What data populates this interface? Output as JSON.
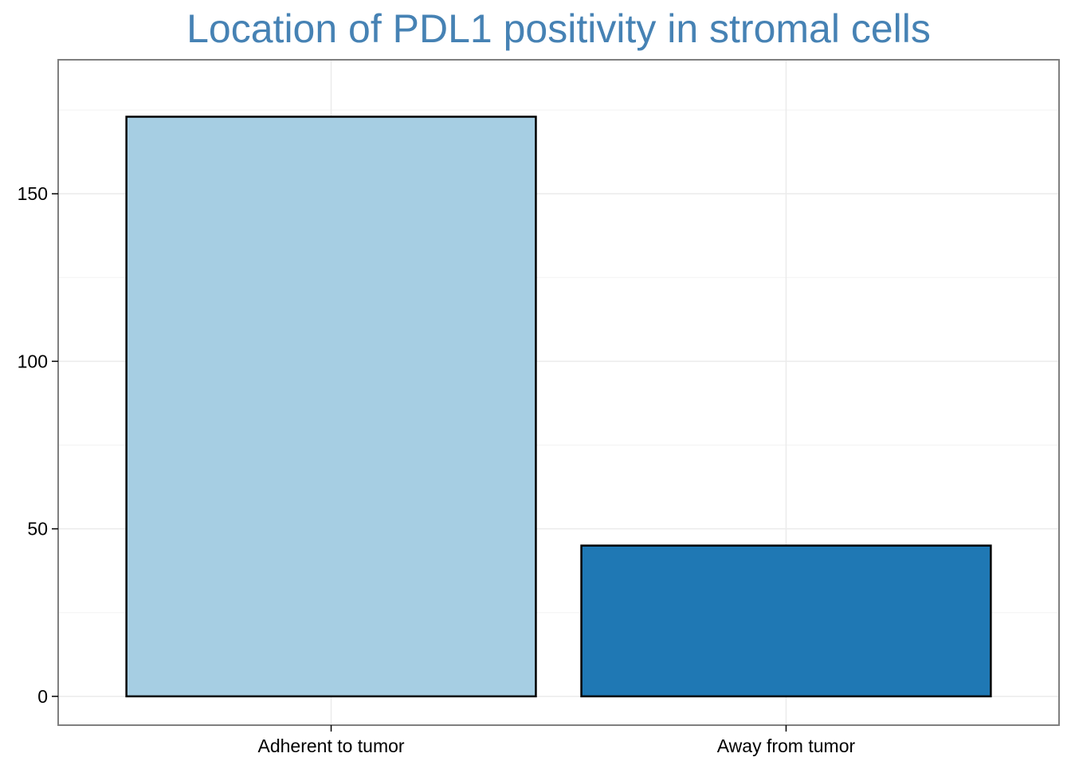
{
  "chart_data": {
    "type": "bar",
    "title": "Location of PDL1 positivity in stromal cells",
    "xlabel": "",
    "ylabel": "",
    "categories": [
      "Adherent to tumor",
      "Away from tumor"
    ],
    "values": [
      173,
      45
    ],
    "ylim": [
      -8.6,
      190
    ],
    "yticks": [
      0,
      50,
      100,
      150
    ],
    "ytick_labels": [
      "0",
      "50",
      "100",
      "150"
    ],
    "grid": true,
    "legend": "none",
    "colors": {
      "title": "#4682b4",
      "bars": [
        "#a6cee3",
        "#1f78b4"
      ],
      "bar_outline": "#000000",
      "grid_major": "#ebebeb",
      "grid_minor": "#f4f4f4",
      "panel_border": "#7f7f7f",
      "axis_text": "#000000"
    }
  }
}
